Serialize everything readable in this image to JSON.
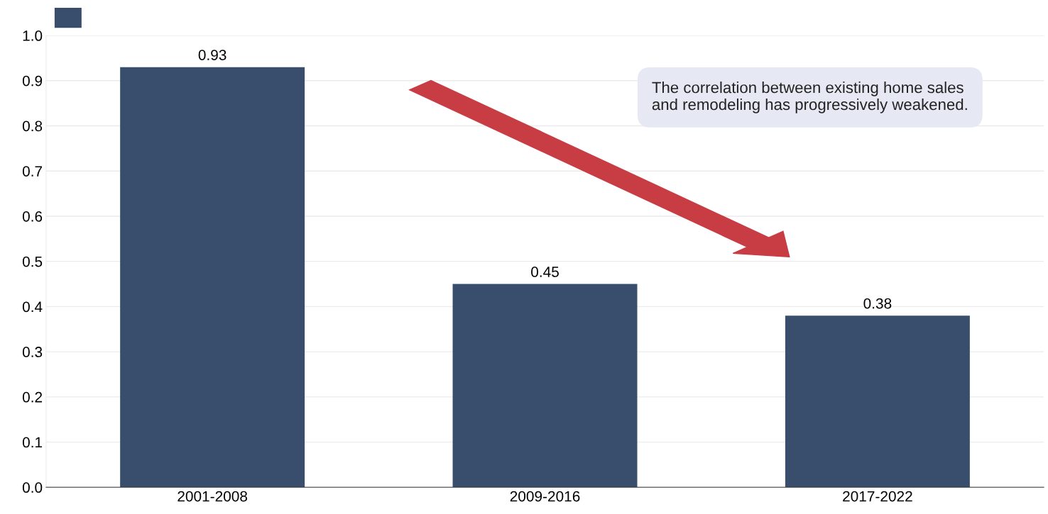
{
  "chart_data": {
    "type": "bar",
    "categories": [
      "2001-2008",
      "2009-2016",
      "2017-2022"
    ],
    "series": [
      {
        "color": "#384e6c",
        "values": [
          0.93,
          0.45,
          0.38
        ]
      }
    ],
    "ylim": [
      0,
      1.0
    ],
    "yticks": [
      {
        "value": 0,
        "label": "0.0"
      },
      0.1,
      0.2,
      0.3,
      0.4,
      0.5,
      0.6,
      0.7,
      0.8,
      0.9,
      {
        "value": 1.0,
        "label": "1.0"
      }
    ],
    "grid": "y",
    "data_labels": true,
    "annotations": [
      "The correlation between existing home sales\nand remodeling has progressively weakened."
    ]
  }
}
